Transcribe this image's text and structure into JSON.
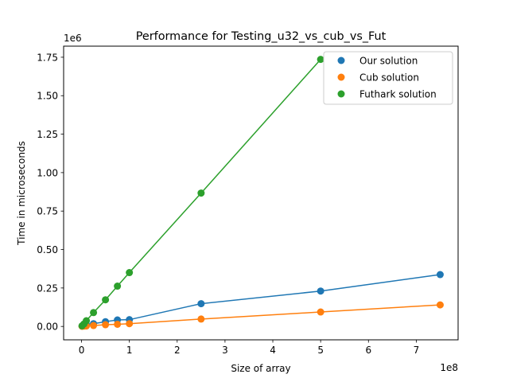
{
  "chart_data": {
    "type": "scatter",
    "title": "Performance for Testing_u32_vs_cub_vs_Fut",
    "xlabel": "Size of array",
    "ylabel": "Time in microseconds",
    "x_multiplier": "1e8",
    "y_multiplier": "1e6",
    "xlim": [
      -0.375,
      7.875
    ],
    "ylim": [
      -0.087,
      1.822
    ],
    "xticks": [
      0,
      1,
      2,
      3,
      4,
      5,
      6,
      7
    ],
    "xtick_labels": [
      "0",
      "1",
      "2",
      "3",
      "4",
      "5",
      "6",
      "7"
    ],
    "yticks": [
      0.0,
      0.25,
      0.5,
      0.75,
      1.0,
      1.25,
      1.5,
      1.75
    ],
    "ytick_labels": [
      "0.00",
      "0.25",
      "0.50",
      "0.75",
      "1.00",
      "1.25",
      "1.50",
      "1.75"
    ],
    "legend_position": "top-right",
    "grid": false,
    "series": [
      {
        "name": "Our solution",
        "color": "#1f77b4",
        "x": [
          0.01,
          0.05,
          0.1,
          0.25,
          0.5,
          0.75,
          1.0,
          2.5,
          5.0,
          7.5
        ],
        "y": [
          0.002,
          0.006,
          0.012,
          0.018,
          0.031,
          0.042,
          0.044,
          0.148,
          0.23,
          0.337
        ]
      },
      {
        "name": "Cub solution",
        "color": "#ff7f0e",
        "x": [
          0.01,
          0.05,
          0.1,
          0.25,
          0.5,
          0.75,
          1.0,
          2.5,
          5.0,
          7.5
        ],
        "y": [
          0.001,
          0.002,
          0.003,
          0.006,
          0.011,
          0.014,
          0.018,
          0.048,
          0.094,
          0.14
        ]
      },
      {
        "name": "Futhark solution",
        "color": "#2ca02c",
        "x": [
          0.01,
          0.05,
          0.1,
          0.25,
          0.5,
          0.75,
          1.0,
          2.5,
          5.0
        ],
        "y": [
          0.004,
          0.016,
          0.037,
          0.09,
          0.173,
          0.262,
          0.35,
          0.867,
          1.736
        ]
      }
    ]
  }
}
